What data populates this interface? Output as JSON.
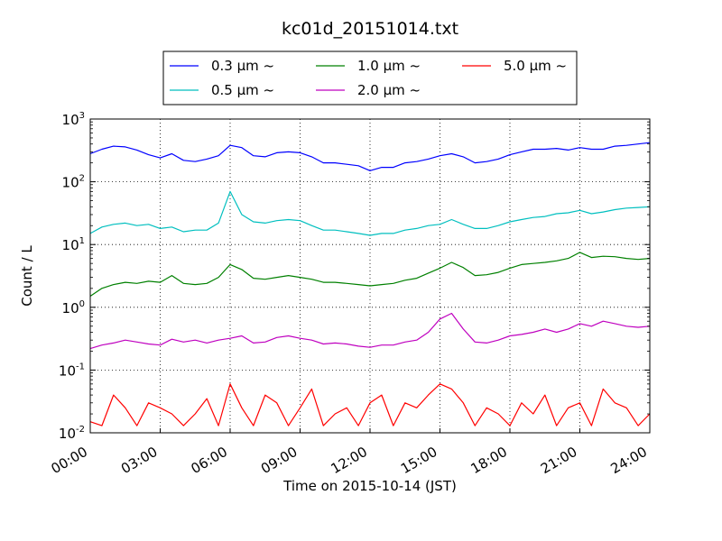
{
  "chart_data": {
    "type": "line",
    "title": "kc01d_20151014.txt",
    "xlabel": "Time on 2015-10-14 (JST)",
    "ylabel": "Count / L",
    "xlim": [
      0,
      24
    ],
    "ylim": [
      0.01,
      1000
    ],
    "y_scale": "log",
    "grid": true,
    "grid_style": "dotted",
    "legend_position": "top-center",
    "x_ticks": [
      0,
      3,
      6,
      9,
      12,
      15,
      18,
      21,
      24
    ],
    "x_tick_labels": [
      "00:00",
      "03:00",
      "06:00",
      "09:00",
      "12:00",
      "15:00",
      "18:00",
      "21:00",
      "24:00"
    ],
    "y_tick_labels": [
      {
        "value": 0.01,
        "base": "10",
        "exp": "-2"
      },
      {
        "value": 0.1,
        "base": "10",
        "exp": "-1"
      },
      {
        "value": 1,
        "base": "10",
        "exp": "0"
      },
      {
        "value": 10,
        "base": "10",
        "exp": "1"
      },
      {
        "value": 100,
        "base": "10",
        "exp": "2"
      },
      {
        "value": 1000,
        "base": "10",
        "exp": "3"
      }
    ],
    "x": [
      0,
      0.5,
      1,
      1.5,
      2,
      2.5,
      3,
      3.5,
      4,
      4.5,
      5,
      5.5,
      6,
      6.5,
      7,
      7.5,
      8,
      8.5,
      9,
      9.5,
      10,
      10.5,
      11,
      11.5,
      12,
      12.5,
      13,
      13.5,
      14,
      14.5,
      15,
      15.5,
      16,
      16.5,
      17,
      17.5,
      18,
      18.5,
      19,
      19.5,
      20,
      20.5,
      21,
      21.5,
      22,
      22.5,
      23,
      23.5,
      24
    ],
    "series": [
      {
        "name": "0.3 μm ~",
        "color": "#0000ff",
        "values": [
          280,
          330,
          370,
          360,
          320,
          270,
          240,
          280,
          220,
          210,
          230,
          260,
          380,
          350,
          260,
          250,
          290,
          300,
          290,
          250,
          200,
          200,
          190,
          180,
          150,
          170,
          170,
          200,
          210,
          230,
          260,
          280,
          250,
          200,
          210,
          230,
          270,
          300,
          330,
          330,
          340,
          320,
          350,
          330,
          330,
          370,
          380,
          400,
          420
        ]
      },
      {
        "name": "0.5 μm ~",
        "color": "#00bfbf",
        "values": [
          15,
          19,
          21,
          22,
          20,
          21,
          18,
          19,
          16,
          17,
          17,
          22,
          70,
          30,
          23,
          22,
          24,
          25,
          24,
          20,
          17,
          17,
          16,
          15,
          14,
          15,
          15,
          17,
          18,
          20,
          21,
          25,
          21,
          18,
          18,
          20,
          23,
          25,
          27,
          28,
          31,
          32,
          35,
          31,
          33,
          36,
          38,
          39,
          40
        ]
      },
      {
        "name": "1.0 μm ~",
        "color": "#008000",
        "values": [
          1.5,
          2.0,
          2.3,
          2.5,
          2.4,
          2.6,
          2.5,
          3.2,
          2.4,
          2.3,
          2.4,
          3.0,
          4.8,
          4.0,
          2.9,
          2.8,
          3.0,
          3.2,
          3.0,
          2.8,
          2.5,
          2.5,
          2.4,
          2.3,
          2.2,
          2.3,
          2.4,
          2.7,
          2.9,
          3.5,
          4.2,
          5.2,
          4.3,
          3.2,
          3.3,
          3.6,
          4.2,
          4.8,
          5.0,
          5.2,
          5.5,
          6.0,
          7.5,
          6.2,
          6.5,
          6.4,
          6.0,
          5.8,
          6.0
        ]
      },
      {
        "name": "2.0 μm ~",
        "color": "#bf00bf",
        "values": [
          0.22,
          0.25,
          0.27,
          0.3,
          0.28,
          0.26,
          0.25,
          0.31,
          0.28,
          0.3,
          0.27,
          0.3,
          0.32,
          0.35,
          0.27,
          0.28,
          0.33,
          0.35,
          0.32,
          0.3,
          0.26,
          0.27,
          0.26,
          0.24,
          0.23,
          0.25,
          0.25,
          0.28,
          0.3,
          0.4,
          0.65,
          0.8,
          0.45,
          0.28,
          0.27,
          0.3,
          0.35,
          0.37,
          0.4,
          0.45,
          0.4,
          0.45,
          0.55,
          0.5,
          0.6,
          0.55,
          0.5,
          0.48,
          0.5
        ]
      },
      {
        "name": "5.0 μm ~",
        "color": "#ff0000",
        "values": [
          0.015,
          0.013,
          0.04,
          0.025,
          0.013,
          0.03,
          0.025,
          0.02,
          0.013,
          0.02,
          0.035,
          0.013,
          0.06,
          0.025,
          0.013,
          0.04,
          0.03,
          0.013,
          0.025,
          0.05,
          0.013,
          0.02,
          0.025,
          0.013,
          0.03,
          0.04,
          0.013,
          0.03,
          0.025,
          0.04,
          0.06,
          0.05,
          0.03,
          0.013,
          0.025,
          0.02,
          0.013,
          0.03,
          0.02,
          0.04,
          0.013,
          0.025,
          0.03,
          0.013,
          0.05,
          0.03,
          0.025,
          0.013,
          0.02
        ]
      }
    ]
  }
}
